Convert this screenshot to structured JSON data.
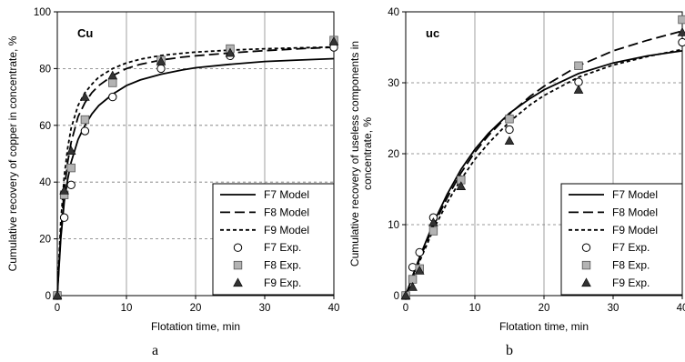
{
  "chart_data": [
    {
      "type": "line",
      "panel_label": "a",
      "inset_label": "Cu",
      "xlabel": "Flotation time, min",
      "ylabel": "Cumulative recovery of copper in concentrate, %",
      "xlim": [
        0,
        40
      ],
      "ylim": [
        0,
        100
      ],
      "xticks": [
        "0",
        "10",
        "20",
        "30",
        "40"
      ],
      "yticks": [
        "0",
        "20",
        "40",
        "60",
        "80",
        "100"
      ],
      "grid": "horizontal dashed, vertical solid",
      "legend_position": "bottom-right",
      "series": [
        {
          "name": "F7 Model",
          "kind": "model",
          "style": "solid",
          "x": [
            0,
            0.5,
            1,
            1.5,
            2,
            3,
            4,
            5,
            6,
            8,
            10,
            12,
            15,
            18,
            20,
            25,
            30,
            35,
            40
          ],
          "y": [
            0,
            20,
            33,
            41,
            47,
            55,
            60,
            64,
            67,
            71,
            74,
            76,
            78,
            79.5,
            80.3,
            81.5,
            82.5,
            83,
            83.5
          ]
        },
        {
          "name": "F8 Model",
          "kind": "model",
          "style": "longdash",
          "x": [
            0,
            0.5,
            1,
            1.5,
            2,
            3,
            4,
            5,
            6,
            8,
            10,
            12,
            15,
            18,
            20,
            25,
            30,
            35,
            40
          ],
          "y": [
            0,
            22,
            37,
            47,
            54,
            63,
            68,
            71.5,
            74,
            77.5,
            80,
            81.5,
            83,
            84,
            84.5,
            85.5,
            86.3,
            87,
            87.5
          ]
        },
        {
          "name": "F9 Model",
          "kind": "model",
          "style": "shortdash",
          "x": [
            0,
            0.5,
            1,
            1.5,
            2,
            3,
            4,
            5,
            6,
            8,
            10,
            12,
            15,
            18,
            20,
            25,
            30,
            35,
            40
          ],
          "y": [
            0,
            26,
            42,
            52,
            59,
            67,
            71.5,
            74.5,
            77,
            80,
            82,
            83.3,
            84.6,
            85.4,
            85.8,
            86.5,
            87,
            87.3,
            87.6
          ]
        },
        {
          "name": "F7 Exp.",
          "kind": "exp",
          "marker": "circle",
          "x": [
            0,
            1,
            2,
            4,
            8,
            15,
            25,
            40
          ],
          "y": [
            0,
            27.5,
            39,
            58,
            70,
            80,
            84.5,
            87.5
          ]
        },
        {
          "name": "F8 Exp.",
          "kind": "exp",
          "marker": "square",
          "x": [
            0,
            1,
            2,
            4,
            8,
            15,
            25,
            40
          ],
          "y": [
            0,
            35.5,
            45,
            62,
            75,
            83,
            87,
            90
          ]
        },
        {
          "name": "F9 Exp.",
          "kind": "exp",
          "marker": "triangle",
          "x": [
            0,
            1,
            2,
            4,
            8,
            15,
            25,
            40
          ],
          "y": [
            0,
            37,
            51,
            70,
            77.5,
            82.5,
            85.5,
            89.5
          ]
        }
      ]
    },
    {
      "type": "line",
      "panel_label": "b",
      "inset_label": "uc",
      "xlabel": "Flotation time, min",
      "ylabel": "Cumulative recovery of useless components in concentrate, %",
      "xlim": [
        0,
        40
      ],
      "ylim": [
        0,
        40
      ],
      "xticks": [
        "0",
        "10",
        "20",
        "30",
        "40"
      ],
      "yticks": [
        "0",
        "10",
        "20",
        "30",
        "40"
      ],
      "grid": "horizontal dashed, vertical solid",
      "legend_position": "bottom-right",
      "series": [
        {
          "name": "F7 Model",
          "kind": "model",
          "style": "solid",
          "x": [
            0,
            1,
            2,
            4,
            6,
            8,
            10,
            12,
            15,
            18,
            20,
            25,
            30,
            35,
            40
          ],
          "y": [
            0,
            2.8,
            5.4,
            10.2,
            14.3,
            17.8,
            20.6,
            22.9,
            25.7,
            27.8,
            29,
            31.3,
            32.8,
            33.8,
            34.5
          ]
        },
        {
          "name": "F8 Model",
          "kind": "model",
          "style": "longdash",
          "x": [
            0,
            1,
            2,
            4,
            6,
            8,
            10,
            12,
            15,
            18,
            20,
            25,
            30,
            35,
            40
          ],
          "y": [
            0,
            2.6,
            5.1,
            9.8,
            13.8,
            17.3,
            20.2,
            22.6,
            25.6,
            28.1,
            29.5,
            32.4,
            34.5,
            36,
            37.3
          ]
        },
        {
          "name": "F9 Model",
          "kind": "model",
          "style": "shortdash",
          "x": [
            0,
            1,
            2,
            4,
            6,
            8,
            10,
            12,
            15,
            18,
            20,
            25,
            30,
            35,
            40
          ],
          "y": [
            0,
            2.4,
            4.8,
            9.3,
            13.1,
            16.4,
            19.2,
            21.5,
            24.5,
            26.9,
            28.2,
            30.8,
            32.5,
            33.7,
            34.7
          ]
        },
        {
          "name": "F7 Exp.",
          "kind": "exp",
          "marker": "circle",
          "x": [
            0,
            1,
            2,
            4,
            8,
            15,
            25,
            40
          ],
          "y": [
            0,
            4,
            6.1,
            11,
            16.3,
            23.4,
            30.1,
            35.7
          ]
        },
        {
          "name": "F8 Exp.",
          "kind": "exp",
          "marker": "square",
          "x": [
            0,
            1,
            2,
            4,
            8,
            15,
            25,
            40
          ],
          "y": [
            0,
            2.3,
            3.8,
            9.1,
            16.3,
            24.9,
            32.4,
            38.9
          ]
        },
        {
          "name": "F9 Exp.",
          "kind": "exp",
          "marker": "triangle",
          "x": [
            0,
            1,
            2,
            4,
            8,
            15,
            25,
            40
          ],
          "y": [
            0,
            1.2,
            3.5,
            10.3,
            15.4,
            21.8,
            29,
            37.1
          ]
        }
      ]
    }
  ]
}
